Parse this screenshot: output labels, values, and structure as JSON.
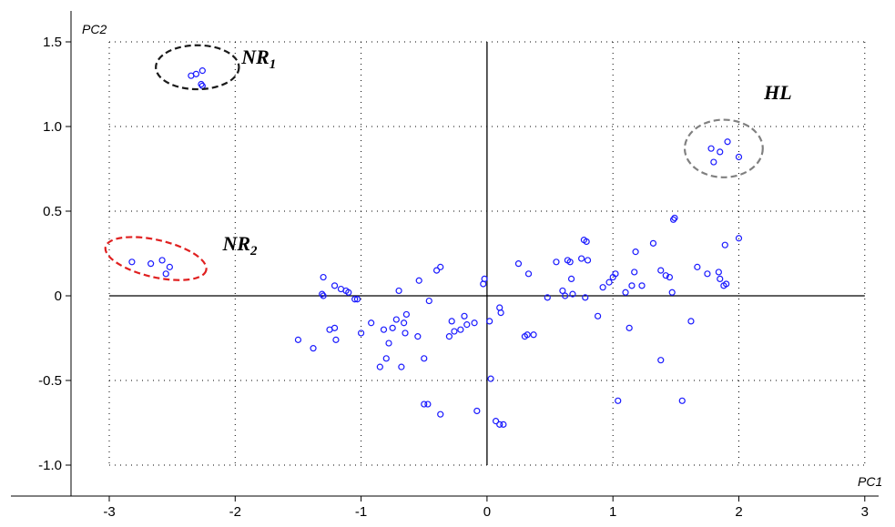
{
  "chart_data": {
    "type": "scatter",
    "title": "",
    "xlabel": "PC1",
    "ylabel": "PC2",
    "xlim": [
      -3,
      3
    ],
    "ylim": [
      -1.0,
      1.5
    ],
    "x_ticks": [
      -3,
      -2,
      -1,
      0,
      1,
      2,
      3
    ],
    "x_tick_labels": [
      "-3",
      "-2",
      "-1",
      "0",
      "1",
      "2",
      "3"
    ],
    "y_ticks": [
      -1.0,
      -0.5,
      0,
      0.5,
      1.0,
      1.5
    ],
    "y_tick_labels": [
      "-1.0",
      "-0.5",
      "0",
      "0.5",
      "1.0",
      "1.5"
    ],
    "grid": true,
    "marker_color": "#1a1aff",
    "points": [
      {
        "x": -2.35,
        "y": 1.3
      },
      {
        "x": -2.31,
        "y": 1.31
      },
      {
        "x": -2.26,
        "y": 1.33
      },
      {
        "x": -2.27,
        "y": 1.25
      },
      {
        "x": -2.26,
        "y": 1.24
      },
      {
        "x": 1.78,
        "y": 0.87
      },
      {
        "x": 1.85,
        "y": 0.85
      },
      {
        "x": 1.91,
        "y": 0.91
      },
      {
        "x": 1.8,
        "y": 0.79
      },
      {
        "x": 2.0,
        "y": 0.82
      },
      {
        "x": -2.82,
        "y": 0.2
      },
      {
        "x": -2.67,
        "y": 0.19
      },
      {
        "x": -2.58,
        "y": 0.21
      },
      {
        "x": -2.52,
        "y": 0.17
      },
      {
        "x": -2.55,
        "y": 0.13
      },
      {
        "x": -1.5,
        "y": -0.26
      },
      {
        "x": -1.38,
        "y": -0.31
      },
      {
        "x": -1.3,
        "y": 0.11
      },
      {
        "x": -1.3,
        "y": 0.0
      },
      {
        "x": -1.31,
        "y": 0.01
      },
      {
        "x": -1.25,
        "y": -0.2
      },
      {
        "x": -1.21,
        "y": -0.19
      },
      {
        "x": -1.2,
        "y": -0.26
      },
      {
        "x": -1.21,
        "y": 0.06
      },
      {
        "x": -1.16,
        "y": 0.04
      },
      {
        "x": -1.12,
        "y": 0.03
      },
      {
        "x": -1.1,
        "y": 0.02
      },
      {
        "x": -1.05,
        "y": -0.02
      },
      {
        "x": -1.03,
        "y": -0.02
      },
      {
        "x": -1.0,
        "y": -0.22
      },
      {
        "x": -0.92,
        "y": -0.16
      },
      {
        "x": -0.85,
        "y": -0.42
      },
      {
        "x": -0.82,
        "y": -0.2
      },
      {
        "x": -0.8,
        "y": -0.37
      },
      {
        "x": -0.78,
        "y": -0.28
      },
      {
        "x": -0.75,
        "y": -0.19
      },
      {
        "x": -0.72,
        "y": -0.14
      },
      {
        "x": -0.7,
        "y": 0.03
      },
      {
        "x": -0.68,
        "y": -0.42
      },
      {
        "x": -0.66,
        "y": -0.16
      },
      {
        "x": -0.65,
        "y": -0.22
      },
      {
        "x": -0.64,
        "y": -0.11
      },
      {
        "x": -0.55,
        "y": -0.24
      },
      {
        "x": -0.54,
        "y": 0.09
      },
      {
        "x": -0.5,
        "y": -0.37
      },
      {
        "x": -0.5,
        "y": -0.64
      },
      {
        "x": -0.47,
        "y": -0.64
      },
      {
        "x": -0.46,
        "y": -0.03
      },
      {
        "x": -0.4,
        "y": 0.15
      },
      {
        "x": -0.37,
        "y": 0.17
      },
      {
        "x": -0.37,
        "y": -0.7
      },
      {
        "x": -0.3,
        "y": -0.24
      },
      {
        "x": -0.28,
        "y": -0.15
      },
      {
        "x": -0.26,
        "y": -0.21
      },
      {
        "x": -0.21,
        "y": -0.2
      },
      {
        "x": -0.18,
        "y": -0.12
      },
      {
        "x": -0.16,
        "y": -0.17
      },
      {
        "x": -0.1,
        "y": -0.16
      },
      {
        "x": -0.08,
        "y": -0.68
      },
      {
        "x": -0.03,
        "y": 0.07
      },
      {
        "x": -0.02,
        "y": 0.1
      },
      {
        "x": 0.02,
        "y": -0.15
      },
      {
        "x": 0.03,
        "y": -0.49
      },
      {
        "x": 0.07,
        "y": -0.74
      },
      {
        "x": 0.1,
        "y": -0.76
      },
      {
        "x": 0.13,
        "y": -0.76
      },
      {
        "x": 0.1,
        "y": -0.07
      },
      {
        "x": 0.11,
        "y": -0.1
      },
      {
        "x": 0.25,
        "y": 0.19
      },
      {
        "x": 0.3,
        "y": -0.24
      },
      {
        "x": 0.32,
        "y": -0.23
      },
      {
        "x": 0.33,
        "y": 0.13
      },
      {
        "x": 0.37,
        "y": -0.23
      },
      {
        "x": 0.48,
        "y": -0.01
      },
      {
        "x": 0.55,
        "y": 0.2
      },
      {
        "x": 0.6,
        "y": 0.03
      },
      {
        "x": 0.62,
        "y": 0.0
      },
      {
        "x": 0.64,
        "y": 0.21
      },
      {
        "x": 0.66,
        "y": 0.2
      },
      {
        "x": 0.67,
        "y": 0.1
      },
      {
        "x": 0.68,
        "y": 0.01
      },
      {
        "x": 0.75,
        "y": 0.22
      },
      {
        "x": 0.77,
        "y": 0.33
      },
      {
        "x": 0.79,
        "y": 0.32
      },
      {
        "x": 0.78,
        "y": -0.01
      },
      {
        "x": 0.8,
        "y": 0.21
      },
      {
        "x": 0.88,
        "y": -0.12
      },
      {
        "x": 0.92,
        "y": 0.05
      },
      {
        "x": 0.97,
        "y": 0.08
      },
      {
        "x": 1.0,
        "y": 0.11
      },
      {
        "x": 1.02,
        "y": 0.13
      },
      {
        "x": 1.04,
        "y": -0.62
      },
      {
        "x": 1.1,
        "y": 0.02
      },
      {
        "x": 1.13,
        "y": -0.19
      },
      {
        "x": 1.15,
        "y": 0.06
      },
      {
        "x": 1.17,
        "y": 0.14
      },
      {
        "x": 1.18,
        "y": 0.26
      },
      {
        "x": 1.23,
        "y": 0.06
      },
      {
        "x": 1.32,
        "y": 0.31
      },
      {
        "x": 1.38,
        "y": 0.15
      },
      {
        "x": 1.38,
        "y": -0.38
      },
      {
        "x": 1.42,
        "y": 0.12
      },
      {
        "x": 1.45,
        "y": 0.11
      },
      {
        "x": 1.48,
        "y": 0.45
      },
      {
        "x": 1.49,
        "y": 0.46
      },
      {
        "x": 1.47,
        "y": 0.02
      },
      {
        "x": 1.55,
        "y": -0.62
      },
      {
        "x": 1.62,
        "y": -0.15
      },
      {
        "x": 1.67,
        "y": 0.17
      },
      {
        "x": 1.75,
        "y": 0.13
      },
      {
        "x": 1.84,
        "y": 0.14
      },
      {
        "x": 1.85,
        "y": 0.1
      },
      {
        "x": 1.88,
        "y": 0.06
      },
      {
        "x": 1.9,
        "y": 0.07
      },
      {
        "x": 1.89,
        "y": 0.3
      },
      {
        "x": 2.0,
        "y": 0.34
      }
    ],
    "annotations": [
      {
        "main": "NR",
        "sub": "1",
        "x": -1.95,
        "y": 1.37,
        "ellipse": {
          "cx": -2.3,
          "cy": 1.35,
          "rx": 0.33,
          "ry": 0.13
        },
        "color": "#1a1a1a"
      },
      {
        "main": "HL",
        "sub": "",
        "x": 2.2,
        "y": 1.16,
        "ellipse": {
          "cx": 1.88,
          "cy": 0.87,
          "rx": 0.31,
          "ry": 0.17
        },
        "color": "#808080"
      },
      {
        "main": "NR",
        "sub": "2",
        "x": -2.1,
        "y": 0.27,
        "ellipse": {
          "cx": -2.63,
          "cy": 0.22,
          "rx": 0.41,
          "ry": 0.11
        },
        "color": "#e02020",
        "rotate": 13
      }
    ]
  }
}
